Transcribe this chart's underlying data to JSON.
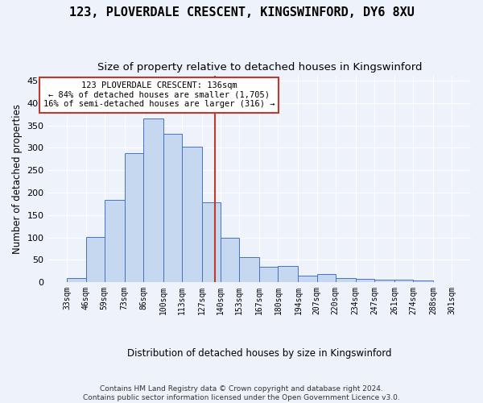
{
  "title": "123, PLOVERDALE CRESCENT, KINGSWINFORD, DY6 8XU",
  "subtitle": "Size of property relative to detached houses in Kingswinford",
  "xlabel": "Distribution of detached houses by size in Kingswinford",
  "ylabel": "Number of detached properties",
  "footnote1": "Contains HM Land Registry data © Crown copyright and database right 2024.",
  "footnote2": "Contains public sector information licensed under the Open Government Licence v3.0.",
  "bin_labels": [
    "33sqm",
    "46sqm",
    "59sqm",
    "73sqm",
    "86sqm",
    "100sqm",
    "113sqm",
    "127sqm",
    "140sqm",
    "153sqm",
    "167sqm",
    "180sqm",
    "194sqm",
    "207sqm",
    "220sqm",
    "234sqm",
    "247sqm",
    "261sqm",
    "274sqm",
    "288sqm",
    "301sqm"
  ],
  "bins_edges": [
    33,
    46,
    59,
    73,
    86,
    100,
    113,
    127,
    140,
    153,
    167,
    180,
    194,
    207,
    220,
    234,
    247,
    261,
    274,
    288,
    301
  ],
  "bar_counts": [
    9,
    101,
    183,
    289,
    365,
    332,
    303,
    178,
    100,
    57,
    34,
    36,
    15,
    18,
    9,
    8,
    5,
    5,
    4,
    0
  ],
  "bar_color": "#c5d8f0",
  "bar_edge_color": "#4472c4",
  "property_size": 136,
  "vline_color": "#c0392b",
  "annotation_line1": "123 PLOVERDALE CRESCENT: 136sqm",
  "annotation_line2": "← 84% of detached houses are smaller (1,705)",
  "annotation_line3": "16% of semi-detached houses are larger (316) →",
  "annotation_box_edgecolor": "#c0392b",
  "ylim_max": 460,
  "background_color": "#eef2fb",
  "grid_color": "#ffffff",
  "title_fontsize": 11,
  "subtitle_fontsize": 9.5,
  "footnote_fontsize": 6.5
}
